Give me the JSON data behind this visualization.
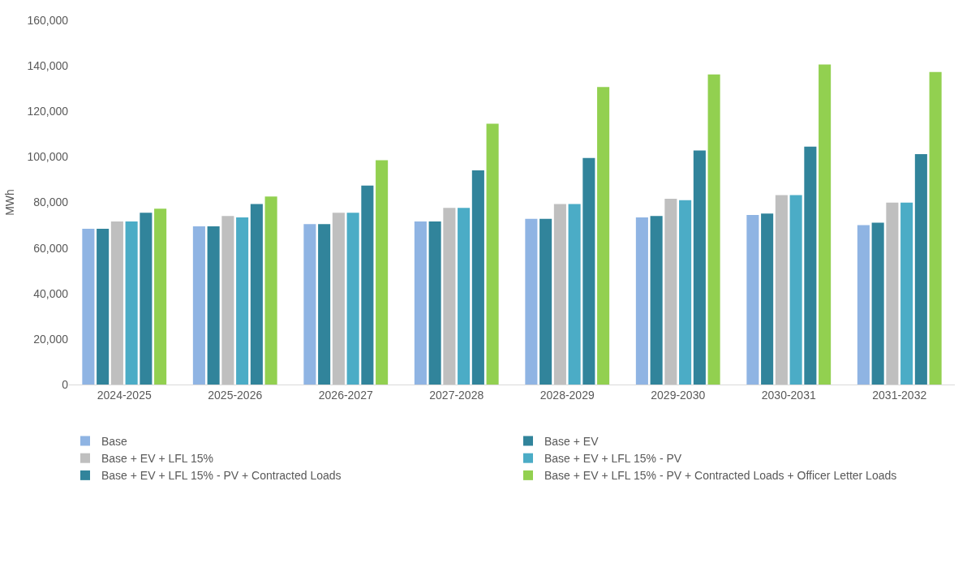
{
  "chart_data": {
    "type": "bar",
    "ylabel": "MWh",
    "categories": [
      "2024-2025",
      "2025-2026",
      "2026-2027",
      "2027-2028",
      "2028-2029",
      "2029-2030",
      "2030-2031",
      "2031-2032"
    ],
    "series": [
      {
        "name": "Base",
        "color": "#8fb4e3",
        "values": [
          68400,
          69500,
          70500,
          71600,
          72800,
          73400,
          74500,
          70000
        ]
      },
      {
        "name": "Base + EV",
        "color": "#31849b",
        "values": [
          68400,
          69500,
          70500,
          71600,
          72800,
          74000,
          75100,
          71100
        ]
      },
      {
        "name": "Base + EV + LFL 15%",
        "color": "#bfbfbf",
        "values": [
          71600,
          74000,
          75500,
          77600,
          79300,
          81600,
          83200,
          79900
        ]
      },
      {
        "name": "Base + EV + LFL 15% - PV",
        "color": "#4bacc6",
        "values": [
          71600,
          73400,
          75500,
          77600,
          79300,
          81000,
          83200,
          79900
        ]
      },
      {
        "name": "Base + EV + LFL 15% - PV + Contracted Loads",
        "color": "#31849b",
        "values": [
          75500,
          79300,
          87400,
          94100,
          99500,
          102800,
          104500,
          101200
        ]
      },
      {
        "name": "Base + EV + LFL 15% - PV + Contracted Loads + Officer Letter Loads",
        "color": "#92d050",
        "values": [
          77200,
          82600,
          98500,
          114600,
          130700,
          136200,
          140600,
          137300
        ]
      }
    ],
    "ylim": [
      0,
      160000
    ],
    "yticks": [
      {
        "value": 0,
        "label": "0"
      },
      {
        "value": 20000,
        "label": "20,000"
      },
      {
        "value": 40000,
        "label": "40,000"
      },
      {
        "value": 60000,
        "label": "60,000"
      },
      {
        "value": 80000,
        "label": "80,000"
      },
      {
        "value": 100000,
        "label": "100,000"
      },
      {
        "value": 120000,
        "label": "120,000"
      },
      {
        "value": 140000,
        "label": "140,000"
      },
      {
        "value": 160000,
        "label": "160,000"
      }
    ],
    "grid": false,
    "legend": "bottom"
  }
}
